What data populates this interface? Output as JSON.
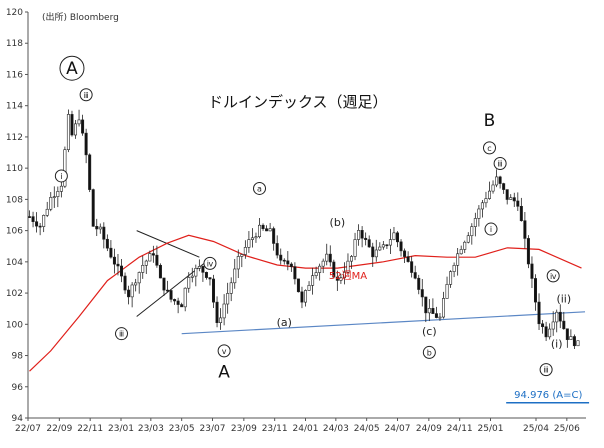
{
  "chart_data": {
    "type": "candlestick",
    "title": "ドルインデックス（週足）",
    "source": "(出所) Bloomberg",
    "ylim": [
      94,
      120
    ],
    "yticks": [
      94,
      96,
      98,
      100,
      102,
      104,
      106,
      108,
      110,
      112,
      114,
      116,
      118,
      120
    ],
    "xlim": [
      "2022-07",
      "2025-07"
    ],
    "xticks": [
      "22/07",
      "22/09",
      "22/11",
      "23/01",
      "23/03",
      "23/05",
      "23/07",
      "23/09",
      "23/11",
      "24/01",
      "24/03",
      "24/05",
      "24/07",
      "24/09",
      "24/11",
      "25/01",
      "25/04",
      "25/06"
    ],
    "weekly_closes": [
      {
        "date": "2022-07-04",
        "close": 106.9
      },
      {
        "date": "2022-07-25",
        "close": 106.3
      },
      {
        "date": "2022-08-15",
        "close": 108.1
      },
      {
        "date": "2022-09-05",
        "close": 109.0
      },
      {
        "date": "2022-09-19",
        "close": 113.2
      },
      {
        "date": "2022-09-26",
        "close": 112.1
      },
      {
        "date": "2022-10-10",
        "close": 113.3
      },
      {
        "date": "2022-10-24",
        "close": 110.8
      },
      {
        "date": "2022-11-07",
        "close": 106.3
      },
      {
        "date": "2022-11-21",
        "close": 106.0
      },
      {
        "date": "2022-12-05",
        "close": 104.9
      },
      {
        "date": "2022-12-26",
        "close": 103.5
      },
      {
        "date": "2023-01-16",
        "close": 101.9
      },
      {
        "date": "2023-01-30",
        "close": 102.9
      },
      {
        "date": "2023-02-13",
        "close": 103.8
      },
      {
        "date": "2023-03-06",
        "close": 104.6
      },
      {
        "date": "2023-03-20",
        "close": 102.8
      },
      {
        "date": "2023-04-10",
        "close": 101.6
      },
      {
        "date": "2023-05-01",
        "close": 101.3
      },
      {
        "date": "2023-05-15",
        "close": 103.2
      },
      {
        "date": "2023-06-05",
        "close": 103.6
      },
      {
        "date": "2023-06-26",
        "close": 103.0
      },
      {
        "date": "2023-07-10",
        "close": 99.9
      },
      {
        "date": "2023-07-31",
        "close": 102.0
      },
      {
        "date": "2023-08-21",
        "close": 104.1
      },
      {
        "date": "2023-09-11",
        "close": 105.3
      },
      {
        "date": "2023-10-02",
        "close": 106.1
      },
      {
        "date": "2023-10-23",
        "close": 105.9
      },
      {
        "date": "2023-11-13",
        "close": 103.9
      },
      {
        "date": "2023-12-04",
        "close": 103.9
      },
      {
        "date": "2023-12-25",
        "close": 101.3
      },
      {
        "date": "2024-01-15",
        "close": 103.3
      },
      {
        "date": "2024-02-12",
        "close": 104.3
      },
      {
        "date": "2024-03-04",
        "close": 102.7
      },
      {
        "date": "2024-04-01",
        "close": 104.3
      },
      {
        "date": "2024-04-15",
        "close": 106.1
      },
      {
        "date": "2024-05-13",
        "close": 104.5
      },
      {
        "date": "2024-06-03",
        "close": 104.9
      },
      {
        "date": "2024-06-24",
        "close": 105.8
      },
      {
        "date": "2024-07-15",
        "close": 104.3
      },
      {
        "date": "2024-08-05",
        "close": 103.2
      },
      {
        "date": "2024-08-26",
        "close": 100.9
      },
      {
        "date": "2024-09-23",
        "close": 100.4
      },
      {
        "date": "2024-10-14",
        "close": 103.5
      },
      {
        "date": "2024-11-04",
        "close": 105.0
      },
      {
        "date": "2024-11-25",
        "close": 106.3
      },
      {
        "date": "2024-12-16",
        "close": 107.8
      },
      {
        "date": "2025-01-13",
        "close": 109.3
      },
      {
        "date": "2025-02-03",
        "close": 108.1
      },
      {
        "date": "2025-02-24",
        "close": 107.8
      },
      {
        "date": "2025-03-17",
        "close": 104.0
      },
      {
        "date": "2025-04-07",
        "close": 100.2
      },
      {
        "date": "2025-04-21",
        "close": 99.4
      },
      {
        "date": "2025-05-12",
        "close": 100.9
      },
      {
        "date": "2025-06-02",
        "close": 99.2
      },
      {
        "date": "2025-06-23",
        "close": 98.7
      }
    ],
    "series": [
      {
        "name": "52週MA",
        "color": "#e0201b"
      }
    ],
    "ma52_points": [
      {
        "date": "2022-07-04",
        "value": 97.0
      },
      {
        "date": "2022-08-15",
        "value": 98.3
      },
      {
        "date": "2022-10-10",
        "value": 100.5
      },
      {
        "date": "2022-12-05",
        "value": 102.8
      },
      {
        "date": "2023-02-06",
        "value": 104.3
      },
      {
        "date": "2023-04-03",
        "value": 105.2
      },
      {
        "date": "2023-05-15",
        "value": 105.7
      },
      {
        "date": "2023-07-03",
        "value": 105.3
      },
      {
        "date": "2023-09-04",
        "value": 104.4
      },
      {
        "date": "2023-11-06",
        "value": 103.8
      },
      {
        "date": "2024-01-01",
        "value": 103.6
      },
      {
        "date": "2024-03-04",
        "value": 103.6
      },
      {
        "date": "2024-06-03",
        "value": 104.0
      },
      {
        "date": "2024-08-05",
        "value": 104.4
      },
      {
        "date": "2024-10-07",
        "value": 104.3
      },
      {
        "date": "2024-12-02",
        "value": 104.3
      },
      {
        "date": "2025-02-03",
        "value": 104.9
      },
      {
        "date": "2025-04-07",
        "value": 104.8
      },
      {
        "date": "2025-06-30",
        "value": 103.6
      }
    ],
    "support_line": [
      {
        "date": "2023-05-01",
        "value": 99.4
      },
      {
        "date": "2025-07-07",
        "value": 100.8
      }
    ],
    "target_line": {
      "value": 94.976,
      "from": "2025-02-01",
      "to": "2025-07-15",
      "label": "94.976 (A=C)"
    },
    "triangle": {
      "upper": [
        {
          "date": "2023-02-01",
          "value": 106.0
        },
        {
          "date": "2023-06-05",
          "value": 104.3
        }
      ],
      "lower": [
        {
          "date": "2023-02-01",
          "value": 100.5
        },
        {
          "date": "2023-06-26",
          "value": 104.2
        }
      ]
    },
    "annotations": [
      {
        "text": "A",
        "circled": true,
        "size": "big",
        "date": "2022-09-26",
        "value": 116.4
      },
      {
        "text": "ⅲ",
        "circled": true,
        "date": "2022-10-24",
        "value": 114.7
      },
      {
        "text": "ⅰ",
        "circled": true,
        "date": "2022-09-05",
        "value": 109.5
      },
      {
        "text": "ⅲ",
        "circled": true,
        "date": "2023-01-02",
        "value": 99.4
      },
      {
        "text": "ⅳ",
        "circled": true,
        "date": "2023-06-26",
        "value": 103.9
      },
      {
        "text": "ⅴ",
        "circled": true,
        "date": "2023-07-24",
        "value": 98.3
      },
      {
        "text": "A",
        "size": "big",
        "date": "2023-07-24",
        "value": 96.6
      },
      {
        "text": "a",
        "circled": true,
        "date": "2023-10-02",
        "value": 108.7
      },
      {
        "text": "(a)",
        "date": "2023-11-20",
        "value": 99.9
      },
      {
        "text": "(b)",
        "date": "2024-03-04",
        "value": 106.3
      },
      {
        "text": "52週MA",
        "date": "2024-03-25",
        "value": 102.9,
        "style": "ma"
      },
      {
        "text": "(c)",
        "date": "2024-09-02",
        "value": 99.3
      },
      {
        "text": "b",
        "circled": true,
        "date": "2024-09-02",
        "value": 98.2
      },
      {
        "text": "B",
        "size": "big",
        "date": "2024-12-30",
        "value": 112.7
      },
      {
        "text": "c",
        "circled": true,
        "date": "2024-12-30",
        "value": 111.3
      },
      {
        "text": "ⅲ",
        "circled": true,
        "date": "2025-01-20",
        "value": 110.3
      },
      {
        "text": "ⅰ",
        "circled": true,
        "date": "2025-01-02",
        "value": 106.1
      },
      {
        "text": "ⅳ",
        "circled": true,
        "date": "2025-05-05",
        "value": 103.1
      },
      {
        "text": "(ii)",
        "date": "2025-05-26",
        "value": 101.4
      },
      {
        "text": "(i)",
        "date": "2025-05-12",
        "value": 98.5
      },
      {
        "text": "ⅲ",
        "circled": true,
        "date": "2025-04-21",
        "value": 97.1
      }
    ],
    "colors": {
      "up": "#333333",
      "down": "#111111",
      "ma": "#e0201b",
      "support": "#5b87c5",
      "target": "#1d6fc4",
      "triangle": "#222222"
    }
  }
}
